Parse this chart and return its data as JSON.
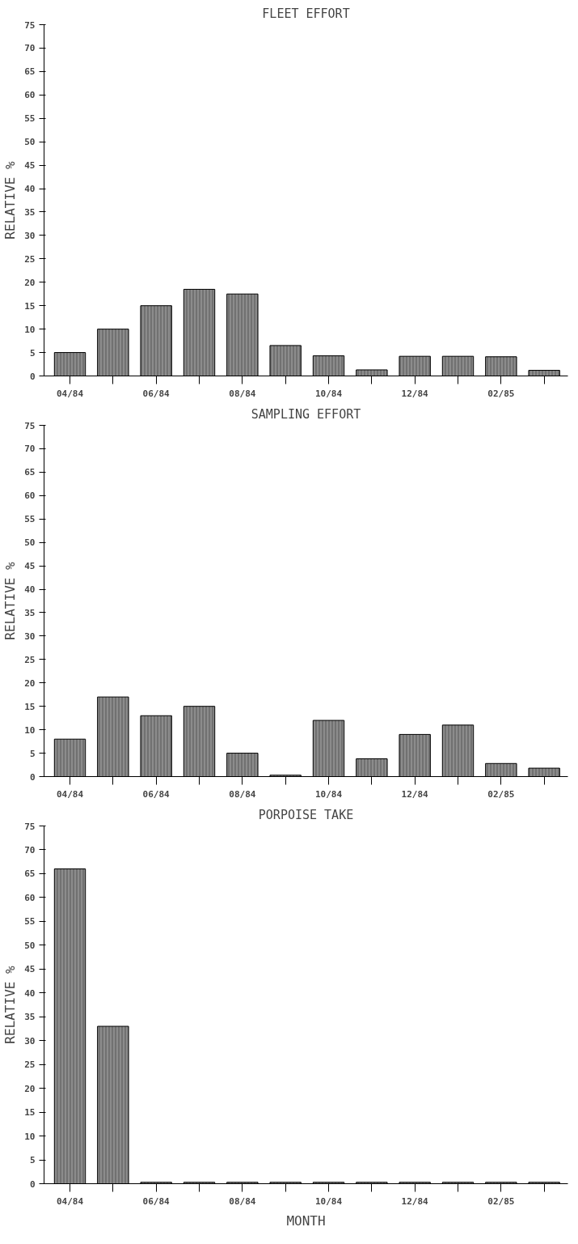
{
  "chart_data": [
    {
      "type": "bar",
      "title": "FLEET EFFORT",
      "ylabel": "RELATIVE %",
      "categories": [
        "04/84",
        null,
        "06/84",
        null,
        "08/84",
        null,
        "10/84",
        null,
        "12/84",
        null,
        "02/85",
        null
      ],
      "values": [
        5,
        10,
        15,
        18.5,
        17.5,
        6.5,
        4.3,
        1.3,
        4.2,
        4.2,
        4.1,
        1.2
      ],
      "color": "#8c8c8c",
      "ylim": [
        0,
        75
      ],
      "yticks": [
        0,
        5,
        10,
        15,
        20,
        25,
        30,
        35,
        40,
        45,
        50,
        55,
        60,
        65,
        70,
        75
      ],
      "grid": false
    },
    {
      "type": "bar",
      "title": "SAMPLING EFFORT",
      "ylabel": "RELATIVE %",
      "categories": [
        "04/84",
        null,
        "06/84",
        null,
        "08/84",
        null,
        "10/84",
        null,
        "12/84",
        null,
        "02/85",
        null
      ],
      "values": [
        8,
        17,
        13,
        15,
        5,
        0.3,
        12,
        3.8,
        9,
        11,
        2.8,
        1.8
      ],
      "color": "#8c8c8c",
      "ylim": [
        0,
        75
      ],
      "yticks": [
        0,
        5,
        10,
        15,
        20,
        25,
        30,
        35,
        40,
        45,
        50,
        55,
        60,
        65,
        70,
        75
      ],
      "grid": false
    },
    {
      "type": "bar",
      "title": "PORPOISE TAKE",
      "ylabel": "RELATIVE %",
      "xlabel": "MONTH",
      "categories": [
        "04/84",
        null,
        "06/84",
        null,
        "08/84",
        null,
        "10/84",
        null,
        "12/84",
        null,
        "02/85",
        null
      ],
      "values": [
        66,
        33,
        0.3,
        0.3,
        0.3,
        0.3,
        0.3,
        0.3,
        0.3,
        0.3,
        0.3,
        0.3
      ],
      "color": "#8c8c8c",
      "ylim": [
        0,
        75
      ],
      "yticks": [
        0,
        5,
        10,
        15,
        20,
        25,
        30,
        35,
        40,
        45,
        50,
        55,
        60,
        65,
        70,
        75
      ],
      "grid": false
    }
  ]
}
